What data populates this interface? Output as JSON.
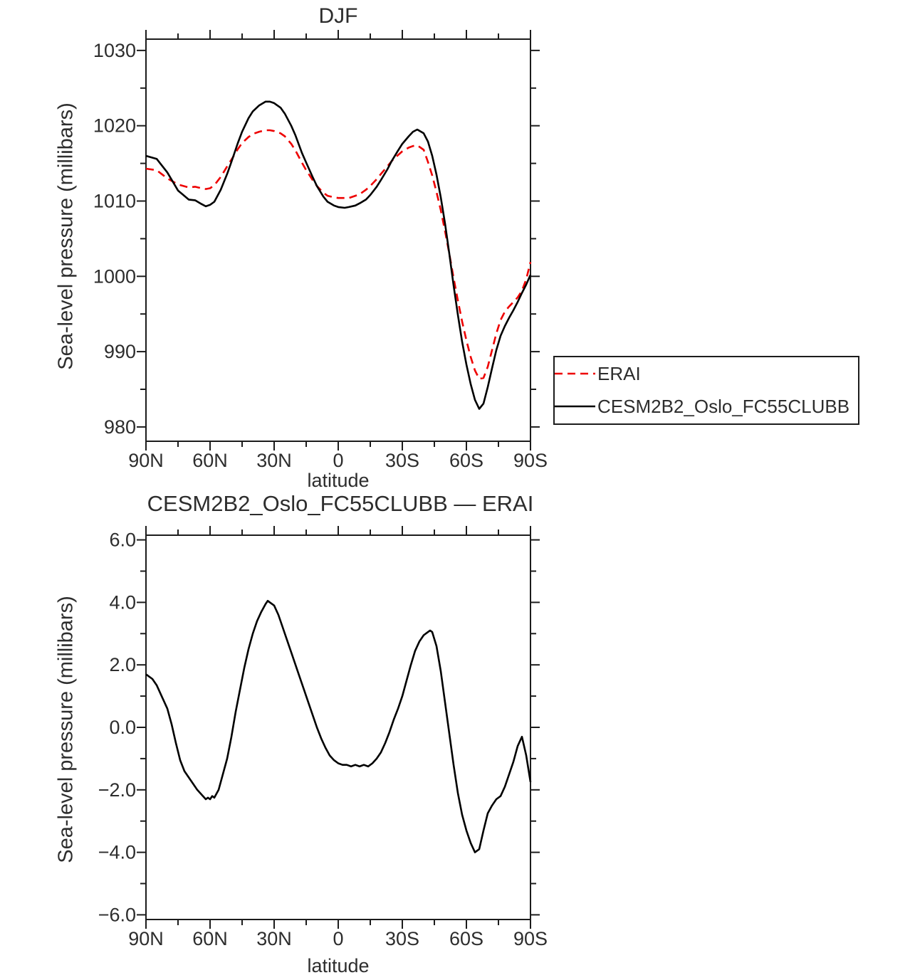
{
  "colors": {
    "background": "#ffffff",
    "axis": "#1c1c1c",
    "text": "#2d2d2d",
    "erai_red": "#ee0000",
    "line_black": "#000000"
  },
  "chart_data": [
    {
      "type": "line",
      "title": "DJF",
      "xlabel": "latitude",
      "ylabel": "Sea-level pressure (millibars)",
      "xlim": [
        90,
        -90
      ],
      "ylim": [
        980,
        1030
      ],
      "grid": false,
      "legend": {
        "position": "outside-right"
      },
      "x_tick_values": [
        90,
        60,
        30,
        0,
        -30,
        -60,
        -90
      ],
      "x_tick_labels": [
        "90N",
        "60N",
        "30N",
        "0",
        "30S",
        "60S",
        "90S"
      ],
      "x_minor_ticks": [
        75,
        45,
        15,
        -15,
        -45,
        -75
      ],
      "y_tick_values": [
        1030,
        1020,
        1010,
        1000,
        990,
        980
      ],
      "y_tick_labels": [
        "1030",
        "1020",
        "1010",
        "1000",
        "990",
        "980"
      ],
      "y_minor_ticks": [
        1025,
        1015,
        1005,
        995,
        985
      ],
      "series": [
        {
          "name": "ERAI",
          "color": "#ee0000",
          "dash": "11 7",
          "width": 2.6,
          "x": [
            90,
            85,
            80,
            75,
            70,
            67,
            64,
            62,
            60,
            58,
            55,
            52,
            50,
            47,
            45,
            42,
            40,
            37,
            34,
            32,
            30,
            27,
            25,
            22,
            20,
            17,
            15,
            12,
            10,
            7,
            5,
            2,
            0,
            -3,
            -5,
            -8,
            -10,
            -13,
            -15,
            -18,
            -20,
            -23,
            -25,
            -28,
            -30,
            -33,
            -35,
            -37,
            -40,
            -42,
            -44,
            -46,
            -48,
            -50,
            -52,
            -54,
            -56,
            -58,
            -60,
            -62,
            -64,
            -66,
            -68,
            -70,
            -72,
            -74,
            -76,
            -78,
            -80,
            -82,
            -84,
            -86,
            -88,
            -90
          ],
          "y": [
            1014.3,
            1014.1,
            1013.0,
            1012.2,
            1011.8,
            1011.9,
            1011.7,
            1011.6,
            1011.7,
            1012.1,
            1013.2,
            1014.6,
            1015.5,
            1016.9,
            1017.7,
            1018.5,
            1018.9,
            1019.2,
            1019.4,
            1019.4,
            1019.3,
            1019.0,
            1018.6,
            1017.6,
            1016.7,
            1015.1,
            1014.1,
            1012.8,
            1012.0,
            1011.1,
            1010.7,
            1010.5,
            1010.4,
            1010.4,
            1010.4,
            1010.7,
            1010.9,
            1011.5,
            1012.0,
            1012.9,
            1013.6,
            1014.6,
            1015.3,
            1016.1,
            1016.6,
            1017.1,
            1017.3,
            1017.4,
            1016.8,
            1015.2,
            1013.4,
            1011.2,
            1008.8,
            1006.0,
            1003.0,
            999.8,
            996.8,
            994.0,
            991.5,
            989.3,
            987.5,
            986.4,
            986.5,
            988.0,
            990.2,
            992.4,
            994.2,
            995.3,
            996.0,
            996.6,
            997.2,
            998.1,
            999.6,
            1001.9
          ]
        },
        {
          "name": "CESM2B2_Oslo_FC55CLUBB",
          "color": "#000000",
          "dash": null,
          "width": 2.6,
          "x": [
            90,
            85,
            80,
            75,
            70,
            67,
            64,
            62,
            60,
            58,
            55,
            52,
            50,
            47,
            45,
            42,
            40,
            37,
            34,
            32,
            30,
            27,
            25,
            22,
            20,
            17,
            15,
            12,
            10,
            7,
            5,
            2,
            0,
            -3,
            -5,
            -8,
            -10,
            -13,
            -15,
            -18,
            -20,
            -23,
            -25,
            -28,
            -30,
            -33,
            -35,
            -37,
            -40,
            -42,
            -44,
            -46,
            -48,
            -50,
            -52,
            -54,
            -56,
            -58,
            -60,
            -62,
            -64,
            -66,
            -68,
            -70,
            -72,
            -74,
            -76,
            -78,
            -80,
            -82,
            -84,
            -86,
            -88,
            -90
          ],
          "y": [
            1016.0,
            1015.6,
            1013.8,
            1011.4,
            1010.2,
            1010.1,
            1009.6,
            1009.3,
            1009.5,
            1009.9,
            1011.5,
            1013.6,
            1015.2,
            1017.7,
            1019.2,
            1021.0,
            1021.9,
            1022.7,
            1023.2,
            1023.2,
            1023.0,
            1022.4,
            1021.6,
            1020.0,
            1018.7,
            1016.4,
            1015.1,
            1013.2,
            1012.0,
            1010.6,
            1009.9,
            1009.4,
            1009.2,
            1009.1,
            1009.2,
            1009.4,
            1009.7,
            1010.2,
            1010.8,
            1011.9,
            1012.8,
            1014.2,
            1015.3,
            1016.7,
            1017.6,
            1018.6,
            1019.2,
            1019.5,
            1019.0,
            1017.9,
            1016.0,
            1013.5,
            1010.5,
            1007.0,
            1003.0,
            998.8,
            994.9,
            991.3,
            988.3,
            985.7,
            983.6,
            982.4,
            983.1,
            985.3,
            987.8,
            990.2,
            992.1,
            993.4,
            994.5,
            995.5,
            996.6,
            997.8,
            998.9,
            1000.2
          ]
        }
      ]
    },
    {
      "type": "line",
      "title": "CESM2B2_Oslo_FC55CLUBB — ERAI",
      "xlabel": "latitude",
      "ylabel": "Sea-level pressure (millibars)",
      "xlim": [
        90,
        -90
      ],
      "ylim": [
        -6.0,
        6.0
      ],
      "grid": false,
      "x_tick_values": [
        90,
        60,
        30,
        0,
        -30,
        -60,
        -90
      ],
      "x_tick_labels": [
        "90N",
        "60N",
        "30N",
        "0",
        "30S",
        "60S",
        "90S"
      ],
      "x_minor_ticks": [
        75,
        45,
        15,
        -15,
        -45,
        -75
      ],
      "y_tick_values": [
        6,
        4,
        2,
        0,
        -2,
        -4,
        -6
      ],
      "y_tick_labels": [
        "6.0",
        "4.0",
        "2.0",
        "0.0",
        "−2.0",
        "−4.0",
        "−6.0"
      ],
      "y_minor_ticks": [
        5,
        3,
        1,
        -1,
        -3,
        -5
      ],
      "series": [
        {
          "name": "CESM2B2_Oslo_FC55CLUBB minus ERAI",
          "color": "#000000",
          "dash": null,
          "width": 2.6,
          "x": [
            90,
            87,
            85,
            83,
            80,
            78,
            76,
            74,
            72,
            70,
            68,
            66,
            64,
            62,
            61,
            60,
            59,
            58,
            56,
            54,
            52,
            50,
            48,
            46,
            44,
            42,
            40,
            38,
            36,
            34,
            33,
            32,
            30,
            28,
            26,
            24,
            22,
            20,
            18,
            16,
            14,
            12,
            10,
            8,
            6,
            4,
            2,
            0,
            -2,
            -4,
            -6,
            -8,
            -10,
            -12,
            -14,
            -16,
            -18,
            -20,
            -22,
            -24,
            -26,
            -28,
            -30,
            -32,
            -34,
            -36,
            -38,
            -40,
            -42,
            -43,
            -44,
            -46,
            -48,
            -50,
            -52,
            -54,
            -56,
            -58,
            -60,
            -62,
            -64,
            -66,
            -68,
            -70,
            -72,
            -74,
            -76,
            -78,
            -80,
            -82,
            -84,
            -86,
            -88,
            -90
          ],
          "y": [
            1.7,
            1.55,
            1.35,
            1.05,
            0.6,
            0.1,
            -0.5,
            -1.05,
            -1.4,
            -1.6,
            -1.8,
            -2.0,
            -2.15,
            -2.3,
            -2.25,
            -2.3,
            -2.2,
            -2.25,
            -2.0,
            -1.5,
            -1.0,
            -0.3,
            0.5,
            1.2,
            1.9,
            2.5,
            3.0,
            3.4,
            3.7,
            3.95,
            4.05,
            4.0,
            3.9,
            3.6,
            3.2,
            2.8,
            2.4,
            2.0,
            1.6,
            1.2,
            0.8,
            0.4,
            0.0,
            -0.35,
            -0.65,
            -0.9,
            -1.05,
            -1.15,
            -1.2,
            -1.2,
            -1.25,
            -1.2,
            -1.25,
            -1.2,
            -1.25,
            -1.15,
            -1.0,
            -0.8,
            -0.5,
            -0.15,
            0.25,
            0.6,
            1.0,
            1.5,
            2.0,
            2.45,
            2.75,
            2.95,
            3.05,
            3.1,
            3.05,
            2.6,
            1.8,
            0.8,
            -0.2,
            -1.2,
            -2.1,
            -2.8,
            -3.3,
            -3.7,
            -4.0,
            -3.9,
            -3.3,
            -2.75,
            -2.5,
            -2.3,
            -2.2,
            -1.9,
            -1.5,
            -1.1,
            -0.6,
            -0.3,
            -0.9,
            -1.75
          ]
        }
      ]
    }
  ]
}
